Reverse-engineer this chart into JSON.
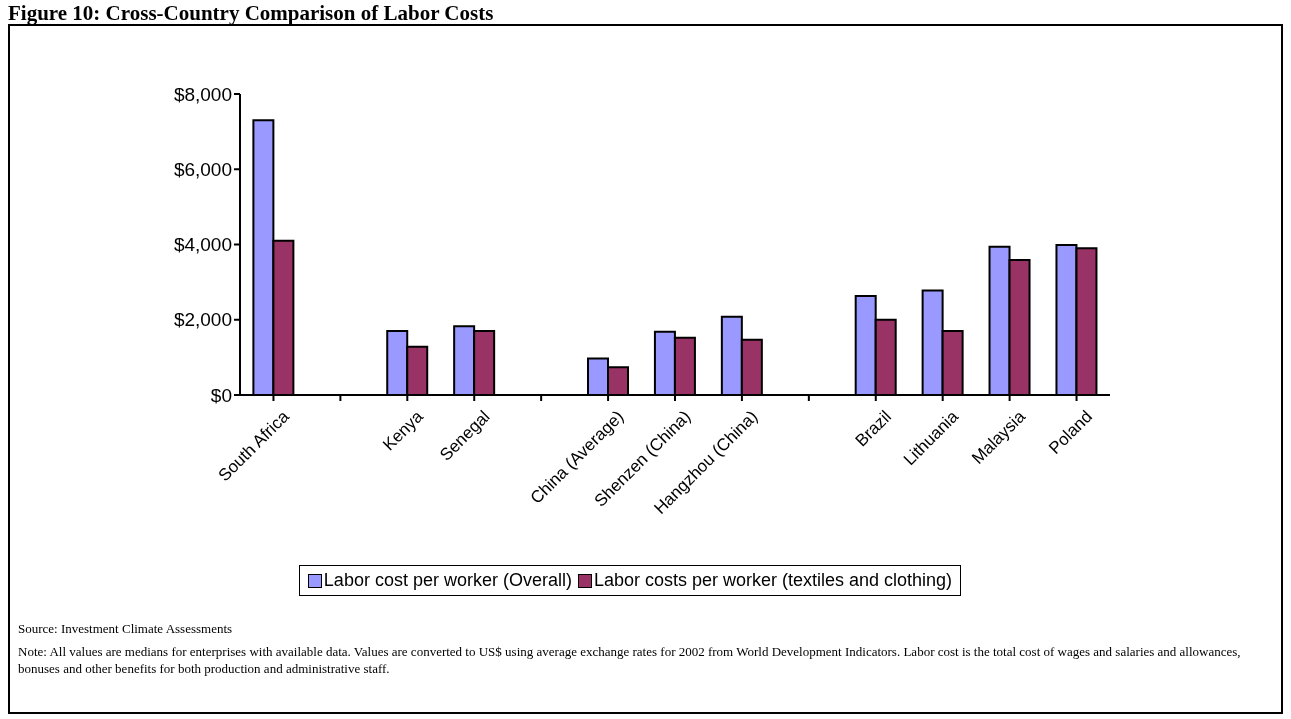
{
  "chart_data": {
    "type": "bar",
    "title": "Figure 10: Cross-Country Comparison of Labor Costs",
    "categories": [
      "South Africa",
      null,
      "Kenya",
      "Senegal",
      null,
      "China (Average)",
      "Shenzen (China)",
      "Hangzhou (China)",
      null,
      "Brazil",
      "Lithuania",
      "Malaysia",
      "Poland"
    ],
    "series": [
      {
        "name": "Labor cost per worker (Overall)",
        "color": "#9999ff",
        "values": [
          7300,
          null,
          1700,
          1830,
          null,
          970,
          1680,
          2080,
          null,
          2630,
          2780,
          3940,
          3990
        ]
      },
      {
        "name": "Labor costs per worker (textiles and clothing)",
        "color": "#993366",
        "values": [
          4100,
          null,
          1280,
          1700,
          null,
          740,
          1520,
          1470,
          null,
          2000,
          1700,
          3590,
          3900
        ]
      }
    ],
    "ylim": [
      0,
      8000
    ],
    "yticks": [
      {
        "value": 0,
        "label": "$0"
      },
      {
        "value": 2000,
        "label": "$2,000"
      },
      {
        "value": 4000,
        "label": "$4,000"
      },
      {
        "value": 6000,
        "label": "$6,000"
      },
      {
        "value": 8000,
        "label": "$8,000"
      }
    ],
    "grid": false,
    "legend": "bottom",
    "annotations": [
      "Source: Investment Climate Assessments",
      "Note: All values are medians for enterprises with available data. Values are converted to US$ using average exchange rates for 2002 from World Development Indicators. Labor cost is the total cost of wages and salaries and allowances, bonuses and other benefits for both production and administrative staff."
    ]
  }
}
